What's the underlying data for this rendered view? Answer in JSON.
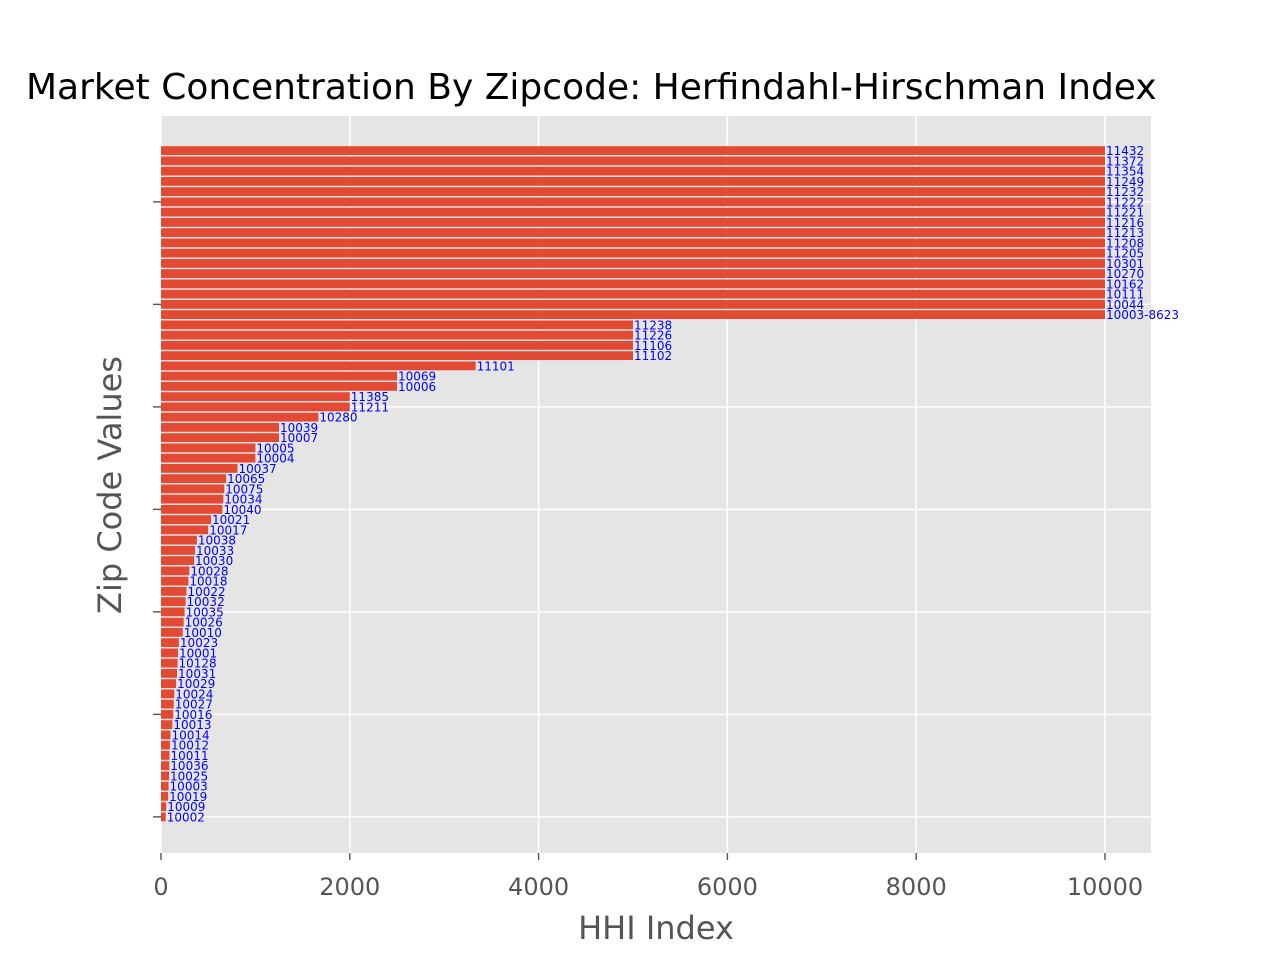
{
  "chart_data": {
    "type": "bar",
    "orientation": "horizontal",
    "title": "Market Concentration By Zipcode: Herfindahl-Hirschman Index",
    "xlabel": "HHI Index",
    "ylabel": "Zip Code Values",
    "xlim": [
      0,
      10500
    ],
    "xticks": [
      "0",
      "2000",
      "4000",
      "6000",
      "8000",
      "10000"
    ],
    "grid": true,
    "bar_color": "#e24a33",
    "label_color": "#0000ff",
    "background_color": "#e5e5e5",
    "categories": [
      "10002",
      "10009",
      "10019",
      "10003",
      "10025",
      "10036",
      "10011",
      "10012",
      "10014",
      "10013",
      "10016",
      "10027",
      "10024",
      "10029",
      "10031",
      "10128",
      "10001",
      "10023",
      "10010",
      "10026",
      "10035",
      "10032",
      "10022",
      "10018",
      "10028",
      "10030",
      "10033",
      "10038",
      "10017",
      "10021",
      "10040",
      "10034",
      "10075",
      "10065",
      "10037",
      "10004",
      "10005",
      "10007",
      "10039",
      "10280",
      "11211",
      "11385",
      "10006",
      "10069",
      "11101",
      "11102",
      "11106",
      "11226",
      "11238",
      "10003-8623",
      "10044",
      "10111",
      "10162",
      "10270",
      "10301",
      "11205",
      "11208",
      "11213",
      "11216",
      "11221",
      "11222",
      "11232",
      "11249",
      "11354",
      "11372",
      "11432"
    ],
    "values": [
      50,
      55,
      75,
      80,
      85,
      88,
      90,
      95,
      100,
      120,
      130,
      135,
      140,
      160,
      170,
      175,
      180,
      190,
      230,
      240,
      250,
      260,
      270,
      290,
      300,
      350,
      360,
      380,
      500,
      530,
      650,
      660,
      670,
      690,
      810,
      1000,
      1000,
      1250,
      1250,
      1667,
      2000,
      2000,
      2500,
      2500,
      3333,
      5000,
      5000,
      5000,
      5000,
      10000,
      10000,
      10000,
      10000,
      10000,
      10000,
      10000,
      10000,
      10000,
      10000,
      10000,
      10000,
      10000,
      10000,
      10000,
      10000,
      10000
    ]
  }
}
